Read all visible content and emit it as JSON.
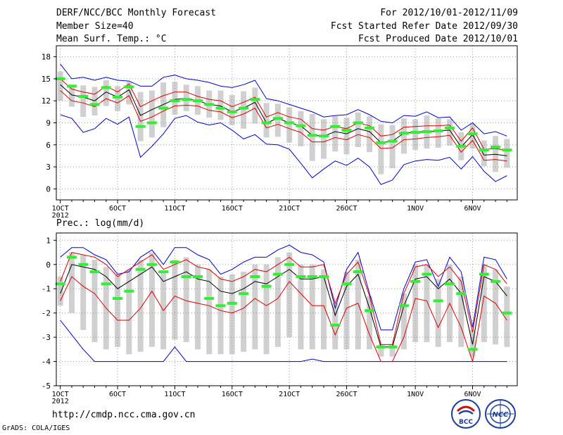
{
  "header": {
    "title": "DERF/NCC/BCC Monthly Forecast",
    "member_size": "Member Size=40",
    "variable_temp": "Mean Surf. Temp.: °C",
    "period": "For 2012/10/01-2012/11/09",
    "fcst_started": "Fcst Started Refer Date 2012/09/30",
    "fcst_produced": "Fcst Produced Date 2012/10/01"
  },
  "footer": {
    "url": "http://cmdp.ncc.cma.gov.cn",
    "grads": "GrADS: COLA/IGES",
    "logo_left": "BCC",
    "logo_right": "NCC"
  },
  "colors": {
    "mean": "#000000",
    "spread": "#dd0000",
    "extreme": "#0000cc",
    "observed": "#33ee33",
    "box": "#d0d0d0",
    "grid": "#999999"
  },
  "x_axis": {
    "day_ticks": [
      1,
      6,
      11,
      16,
      21,
      26,
      32,
      37
    ],
    "labels": [
      "1OCT",
      "6OCT",
      "11OCT",
      "16OCT",
      "21OCT",
      "26OCT",
      "1NOV",
      "6NOV"
    ],
    "year_label": "2012"
  },
  "chart_data": [
    {
      "type": "line",
      "title": "Mean Surf. Temp.: °C",
      "ylim": [
        -1.5,
        19.5
      ],
      "yticks": [
        0,
        3,
        6,
        9,
        12,
        15,
        18
      ],
      "x": [
        1,
        2,
        3,
        4,
        5,
        6,
        7,
        8,
        9,
        10,
        11,
        12,
        13,
        14,
        15,
        16,
        17,
        18,
        19,
        20,
        21,
        22,
        23,
        24,
        25,
        26,
        27,
        28,
        29,
        30,
        31,
        32,
        33,
        34,
        35,
        36,
        37,
        38,
        39,
        40
      ],
      "series": [
        {
          "name": "ensemble-mean",
          "values": [
            14.2,
            12.8,
            12.5,
            12.0,
            13.2,
            12.5,
            13.5,
            10.0,
            10.8,
            11.5,
            12.2,
            12.3,
            12.0,
            11.5,
            11.3,
            10.5,
            11.0,
            11.8,
            9.0,
            9.6,
            9.0,
            8.6,
            7.3,
            7.2,
            7.8,
            7.5,
            8.2,
            7.8,
            6.3,
            6.5,
            7.6,
            7.7,
            7.8,
            7.9,
            8.0,
            5.7,
            7.4,
            4.6,
            4.7,
            4.5
          ]
        },
        {
          "name": "upper-spread",
          "values": [
            15.0,
            13.6,
            13.2,
            12.9,
            14.0,
            13.2,
            14.3,
            11.2,
            12.0,
            12.7,
            13.2,
            13.2,
            12.6,
            12.2,
            12.0,
            11.2,
            11.8,
            12.5,
            9.8,
            10.4,
            9.8,
            9.5,
            8.2,
            8.0,
            8.5,
            8.2,
            9.0,
            8.6,
            7.2,
            7.4,
            8.4,
            8.5,
            8.6,
            8.6,
            8.7,
            6.5,
            8.3,
            5.4,
            5.5,
            5.2
          ]
        },
        {
          "name": "lower-spread",
          "values": [
            13.4,
            12.0,
            11.7,
            11.2,
            12.3,
            11.7,
            12.7,
            9.2,
            9.8,
            10.6,
            11.3,
            11.4,
            11.3,
            10.7,
            10.5,
            9.7,
            10.2,
            11.0,
            8.3,
            8.8,
            8.2,
            7.7,
            6.4,
            6.4,
            7.0,
            6.7,
            7.4,
            7.0,
            5.5,
            5.6,
            6.7,
            6.8,
            7.0,
            7.1,
            7.3,
            5.0,
            6.6,
            3.9,
            4.0,
            3.8
          ]
        },
        {
          "name": "maximum",
          "values": [
            17.0,
            15.0,
            15.2,
            14.8,
            15.2,
            14.8,
            14.7,
            14.0,
            14.0,
            15.2,
            15.5,
            15.0,
            14.8,
            14.5,
            14.0,
            13.8,
            14.2,
            14.8,
            12.3,
            12.0,
            11.5,
            11.0,
            10.5,
            9.8,
            10.0,
            10.1,
            10.8,
            10.1,
            9.2,
            9.0,
            10.0,
            9.9,
            10.5,
            9.7,
            9.8,
            8.0,
            9.0,
            7.5,
            7.8,
            7.2
          ]
        },
        {
          "name": "minimum",
          "values": [
            10.1,
            9.6,
            7.7,
            8.2,
            9.6,
            8.8,
            9.8,
            4.3,
            5.8,
            7.5,
            9.6,
            10.0,
            9.1,
            8.7,
            9.0,
            8.0,
            6.8,
            7.4,
            6.1,
            6.0,
            5.4,
            3.5,
            1.5,
            2.7,
            3.8,
            3.2,
            4.2,
            3.0,
            0.6,
            1.2,
            3.3,
            3.8,
            4.0,
            3.9,
            4.3,
            2.7,
            4.4,
            2.4,
            1.0,
            1.8
          ]
        },
        {
          "name": "observed",
          "values": [
            15.0,
            14.0,
            12.6,
            11.5,
            13.8,
            12.5,
            13.9,
            8.5,
            9.0,
            11.0,
            12.0,
            12.2,
            12.0,
            11.5,
            11.0,
            10.5,
            11.0,
            12.2,
            9.0,
            9.6,
            9.0,
            8.6,
            7.3,
            7.2,
            8.5,
            8.0,
            9.0,
            8.3,
            6.3,
            6.5,
            7.6,
            7.7,
            7.8,
            7.9,
            8.3,
            5.8,
            7.5,
            5.3,
            5.7,
            5.3
          ]
        },
        {
          "name": "box-high",
          "values": [
            16.0,
            14.2,
            14.1,
            13.9,
            14.8,
            14.0,
            14.6,
            13.2,
            13.4,
            14.5,
            14.6,
            14.2,
            14.0,
            13.4,
            13.4,
            12.8,
            13.3,
            13.8,
            11.7,
            11.6,
            11.1,
            10.6,
            10.2,
            9.5,
            9.9,
            9.7,
            10.4,
            9.9,
            8.8,
            8.7,
            9.6,
            9.5,
            10.0,
            9.6,
            9.5,
            7.7,
            8.9,
            6.6,
            7.2,
            6.8
          ]
        },
        {
          "name": "box-low",
          "values": [
            12.0,
            11.2,
            9.8,
            10.0,
            11.3,
            10.6,
            11.5,
            6.5,
            7.0,
            8.4,
            10.1,
            10.6,
            10.1,
            9.7,
            9.4,
            8.7,
            8.2,
            8.9,
            7.0,
            7.1,
            6.3,
            5.8,
            3.8,
            4.1,
            5.1,
            4.7,
            5.7,
            5.0,
            2.0,
            2.8,
            4.8,
            5.3,
            5.5,
            5.6,
            5.9,
            3.9,
            5.5,
            3.1,
            2.3,
            2.9
          ]
        }
      ]
    },
    {
      "type": "line",
      "title": "Prec.: log(mm/d)",
      "ylim": [
        -5,
        1.3
      ],
      "yticks": [
        -5,
        -4,
        -3,
        -2,
        -1,
        0,
        1
      ],
      "x": [
        1,
        2,
        3,
        4,
        5,
        6,
        7,
        8,
        9,
        10,
        11,
        12,
        13,
        14,
        15,
        16,
        17,
        18,
        19,
        20,
        21,
        22,
        23,
        24,
        25,
        26,
        27,
        28,
        29,
        30,
        31,
        32,
        33,
        34,
        35,
        36,
        37,
        38,
        39,
        40
      ],
      "series": [
        {
          "name": "ensemble-mean",
          "values": [
            -1.2,
            0.0,
            -0.1,
            -0.2,
            -0.5,
            -1.0,
            -0.7,
            -0.4,
            -0.1,
            -0.7,
            -0.5,
            -0.3,
            -0.6,
            -0.7,
            -1.1,
            -1.2,
            -1.0,
            -0.7,
            -0.8,
            -0.5,
            -0.2,
            -0.6,
            -0.6,
            -0.5,
            -2.1,
            -0.9,
            -0.4,
            -1.8,
            -3.4,
            -3.4,
            -1.7,
            -0.6,
            -0.5,
            -1.0,
            -0.6,
            -1.2,
            -3.3,
            -0.5,
            -0.7,
            -1.3
          ]
        },
        {
          "name": "upper-spread",
          "values": [
            -0.7,
            0.5,
            0.4,
            0.3,
            0.0,
            -0.5,
            -0.2,
            0.1,
            0.4,
            -0.2,
            0.0,
            0.2,
            -0.1,
            -0.2,
            -0.6,
            -0.7,
            -0.5,
            -0.2,
            -0.3,
            0.0,
            0.3,
            -0.1,
            -0.1,
            0.0,
            -1.6,
            -0.4,
            0.1,
            -1.3,
            -3.3,
            -3.3,
            -1.2,
            -0.1,
            0.0,
            -0.5,
            -0.1,
            -0.7,
            -2.8,
            0.0,
            -0.2,
            -0.8
          ]
        },
        {
          "name": "lower-spread",
          "values": [
            -1.5,
            -0.5,
            -0.9,
            -1.2,
            -1.8,
            -2.3,
            -2.3,
            -1.8,
            -1.1,
            -1.9,
            -1.3,
            -1.5,
            -1.6,
            -1.7,
            -1.9,
            -2.0,
            -1.8,
            -1.4,
            -1.7,
            -1.4,
            -0.7,
            -1.2,
            -1.7,
            -1.7,
            -2.9,
            -1.8,
            -1.6,
            -2.9,
            -4.0,
            -4.0,
            -3.0,
            -1.4,
            -1.5,
            -2.6,
            -1.6,
            -2.6,
            -4.0,
            -1.3,
            -1.6,
            -2.3
          ]
        },
        {
          "name": "maximum",
          "values": [
            0.3,
            0.7,
            0.7,
            0.4,
            0.2,
            -0.4,
            -0.3,
            0.3,
            0.6,
            0.0,
            0.7,
            0.7,
            0.4,
            0.2,
            -0.4,
            -0.2,
            0.1,
            0.3,
            0.3,
            0.6,
            0.8,
            0.5,
            0.4,
            0.1,
            -1.8,
            -0.2,
            0.5,
            -1.2,
            -2.7,
            -2.7,
            -1.0,
            0.1,
            0.2,
            -0.9,
            0.3,
            -0.3,
            -2.6,
            0.3,
            0.2,
            -0.6
          ]
        },
        {
          "name": "minimum",
          "values": [
            -2.3,
            -2.9,
            -3.5,
            -4.0,
            -4.0,
            -4.0,
            -4.0,
            -4.0,
            -4.0,
            -4.0,
            -3.4,
            -4.0,
            -4.0,
            -4.0,
            -4.0,
            -4.0,
            -4.0,
            -4.0,
            -4.0,
            -4.0,
            -4.0,
            -4.0,
            -3.9,
            -4.0,
            -4.0,
            -4.0,
            -4.0,
            -4.0,
            -4.0,
            -4.0,
            -4.0,
            -4.0,
            -4.0,
            -4.0,
            -4.0,
            -4.0,
            -4.0,
            -4.0,
            -4.0,
            -4.0
          ]
        },
        {
          "name": "observed",
          "values": [
            -0.8,
            0.3,
            0.0,
            -0.3,
            -0.8,
            -1.4,
            -1.1,
            -0.2,
            0.0,
            -0.3,
            0.1,
            -0.5,
            -0.5,
            -1.4,
            -1.7,
            -1.6,
            -1.2,
            -0.5,
            -0.9,
            -0.4,
            0.0,
            -0.5,
            -0.5,
            -0.5,
            -2.5,
            -0.8,
            -0.3,
            -1.9,
            -3.4,
            -3.4,
            -1.7,
            -0.7,
            -0.4,
            -1.5,
            -0.8,
            -1.2,
            -3.5,
            -0.4,
            -0.7,
            -2.0
          ]
        },
        {
          "name": "box-high",
          "values": [
            -0.5,
            0.5,
            0.4,
            0.2,
            -0.1,
            -0.4,
            -0.2,
            0.2,
            0.5,
            -0.3,
            0.2,
            0.3,
            0.0,
            -0.2,
            -0.5,
            -0.4,
            -0.3,
            0.0,
            0.0,
            0.3,
            0.5,
            0.0,
            0.0,
            -0.2,
            -1.6,
            -0.3,
            0.2,
            -1.3,
            -3.3,
            -3.3,
            -1.2,
            0.0,
            0.0,
            -0.6,
            0.0,
            -0.5,
            -2.7,
            0.0,
            -0.2,
            -0.9
          ]
        },
        {
          "name": "box-low",
          "values": [
            -1.7,
            -2.0,
            -2.7,
            -3.2,
            -3.5,
            -3.4,
            -3.7,
            -3.6,
            -3.4,
            -3.5,
            -3.1,
            -3.2,
            -3.5,
            -3.7,
            -3.7,
            -3.7,
            -3.6,
            -3.5,
            -3.7,
            -3.4,
            -3.0,
            -3.5,
            -3.5,
            -3.5,
            -3.5,
            -3.5,
            -3.5,
            -3.5,
            -3.8,
            -3.8,
            -3.5,
            -3.2,
            -3.2,
            -3.4,
            -3.2,
            -3.4,
            -3.8,
            -3.2,
            -3.3,
            -3.4
          ]
        }
      ]
    }
  ]
}
